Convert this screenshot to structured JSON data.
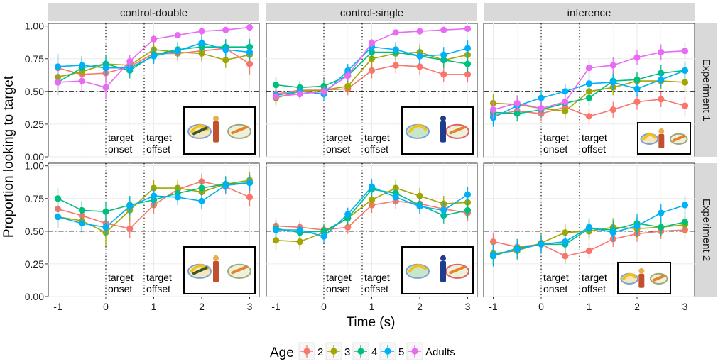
{
  "chart_data": {
    "type": "line",
    "xlabel": "Time (s)",
    "ylabel": "Proportion looking to target",
    "xlim": [
      -1.2,
      3.2
    ],
    "ylim": [
      0,
      1.02
    ],
    "x_ticks": [
      -1,
      0,
      1,
      2,
      3
    ],
    "x_tick_labels": [
      "-1",
      "0",
      "1",
      "2",
      "3"
    ],
    "y_ticks": [
      0,
      0.25,
      0.5,
      0.75,
      1.0
    ],
    "y_tick_labels": [
      "0.00",
      "0.25",
      "0.50",
      "0.75",
      "1.00"
    ],
    "chance_line": 0.5,
    "target_onset_x": 0,
    "target_offset_x": 0.8,
    "annotations": {
      "target_onset": [
        "target",
        "onset"
      ],
      "target_offset": [
        "target",
        "offset"
      ]
    },
    "grid": true,
    "legend": {
      "title": "Age",
      "position": "bottom",
      "entries": [
        {
          "label": "2",
          "color": "#F8766D"
        },
        {
          "label": "3",
          "color": "#A3A500"
        },
        {
          "label": "4",
          "color": "#00BF7D"
        },
        {
          "label": "5",
          "color": "#00B0F6"
        },
        {
          "label": "Adults",
          "color": "#E76BF3"
        }
      ]
    },
    "columns": [
      "control-double",
      "control-single",
      "inference"
    ],
    "rows": [
      "Experiment 1",
      "Experiment 2"
    ],
    "x": [
      -1,
      -0.5,
      0,
      0.5,
      1,
      1.5,
      2,
      2.5,
      3
    ],
    "panels": [
      {
        "column": "control-double",
        "row": "Experiment 1",
        "series": [
          {
            "age": "2",
            "values": [
              0.68,
              0.63,
              0.64,
              0.69,
              0.79,
              0.79,
              0.81,
              0.83,
              0.71
            ],
            "err": [
              0.1,
              0.08,
              0.07,
              0.07,
              0.06,
              0.06,
              0.06,
              0.06,
              0.08
            ]
          },
          {
            "age": "3",
            "values": [
              0.61,
              0.65,
              0.71,
              0.7,
              0.82,
              0.8,
              0.79,
              0.74,
              0.78
            ],
            "err": [
              0.1,
              0.07,
              0.07,
              0.06,
              0.06,
              0.06,
              0.06,
              0.06,
              0.06
            ]
          },
          {
            "age": "4",
            "values": [
              0.57,
              0.68,
              0.71,
              0.66,
              0.78,
              0.82,
              0.84,
              0.84,
              0.84
            ],
            "err": [
              0.1,
              0.07,
              0.07,
              0.06,
              0.06,
              0.06,
              0.06,
              0.06,
              0.06
            ]
          },
          {
            "age": "5",
            "values": [
              0.69,
              0.7,
              0.68,
              0.68,
              0.77,
              0.81,
              0.87,
              0.82,
              0.8
            ],
            "err": [
              0.1,
              0.07,
              0.07,
              0.06,
              0.06,
              0.06,
              0.06,
              0.06,
              0.06
            ]
          },
          {
            "age": "Adults",
            "values": [
              0.57,
              0.58,
              0.53,
              0.73,
              0.9,
              0.93,
              0.96,
              0.97,
              0.99
            ],
            "err": [
              0.1,
              0.08,
              0.09,
              0.05,
              0.03,
              0.02,
              0.02,
              0.02,
              0.01
            ]
          }
        ]
      },
      {
        "column": "control-single",
        "row": "Experiment 1",
        "series": [
          {
            "age": "2",
            "values": [
              0.48,
              0.51,
              0.51,
              0.52,
              0.66,
              0.7,
              0.69,
              0.63,
              0.63
            ],
            "err": [
              0.06,
              0.05,
              0.05,
              0.05,
              0.06,
              0.06,
              0.06,
              0.06,
              0.06
            ]
          },
          {
            "age": "3",
            "values": [
              0.45,
              0.5,
              0.51,
              0.54,
              0.75,
              0.79,
              0.8,
              0.74,
              0.78
            ],
            "err": [
              0.06,
              0.05,
              0.05,
              0.05,
              0.06,
              0.06,
              0.06,
              0.06,
              0.06
            ]
          },
          {
            "age": "4",
            "values": [
              0.55,
              0.53,
              0.54,
              0.62,
              0.8,
              0.8,
              0.77,
              0.74,
              0.71
            ],
            "err": [
              0.06,
              0.05,
              0.05,
              0.05,
              0.06,
              0.06,
              0.06,
              0.06,
              0.06
            ]
          },
          {
            "age": "5",
            "values": [
              0.47,
              0.5,
              0.48,
              0.66,
              0.84,
              0.82,
              0.77,
              0.78,
              0.83
            ],
            "err": [
              0.06,
              0.05,
              0.05,
              0.05,
              0.06,
              0.06,
              0.06,
              0.06,
              0.06
            ]
          },
          {
            "age": "Adults",
            "values": [
              0.46,
              0.48,
              0.5,
              0.62,
              0.87,
              0.95,
              0.96,
              0.97,
              0.98
            ],
            "err": [
              0.05,
              0.04,
              0.04,
              0.04,
              0.03,
              0.02,
              0.02,
              0.01,
              0.01
            ]
          }
        ]
      },
      {
        "column": "inference",
        "row": "Experiment 1",
        "series": [
          {
            "age": "2",
            "values": [
              0.32,
              0.35,
              0.33,
              0.38,
              0.31,
              0.36,
              0.42,
              0.44,
              0.39
            ],
            "err": [
              0.07,
              0.06,
              0.06,
              0.06,
              0.06,
              0.06,
              0.06,
              0.06,
              0.08
            ]
          },
          {
            "age": "3",
            "values": [
              0.41,
              0.4,
              0.37,
              0.35,
              0.5,
              0.53,
              0.58,
              0.58,
              0.57
            ],
            "err": [
              0.07,
              0.06,
              0.06,
              0.06,
              0.06,
              0.06,
              0.06,
              0.06,
              0.07
            ]
          },
          {
            "age": "4",
            "values": [
              0.34,
              0.33,
              0.36,
              0.41,
              0.45,
              0.58,
              0.59,
              0.64,
              0.66
            ],
            "err": [
              0.07,
              0.06,
              0.06,
              0.06,
              0.06,
              0.06,
              0.06,
              0.06,
              0.07
            ]
          },
          {
            "age": "5",
            "values": [
              0.3,
              0.39,
              0.45,
              0.5,
              0.56,
              0.57,
              0.52,
              0.59,
              0.66
            ],
            "err": [
              0.07,
              0.06,
              0.06,
              0.06,
              0.06,
              0.06,
              0.06,
              0.06,
              0.07
            ]
          },
          {
            "age": "Adults",
            "values": [
              0.36,
              0.41,
              0.37,
              0.42,
              0.68,
              0.7,
              0.76,
              0.8,
              0.81
            ],
            "err": [
              0.07,
              0.06,
              0.06,
              0.06,
              0.06,
              0.06,
              0.06,
              0.06,
              0.06
            ]
          }
        ]
      },
      {
        "column": "control-double",
        "row": "Experiment 2",
        "series": [
          {
            "age": "2",
            "values": [
              0.67,
              0.62,
              0.56,
              0.52,
              0.7,
              0.82,
              0.88,
              0.84,
              0.76
            ],
            "err": [
              0.07,
              0.07,
              0.07,
              0.07,
              0.07,
              0.06,
              0.06,
              0.06,
              0.07
            ]
          },
          {
            "age": "3",
            "values": [
              0.61,
              0.58,
              0.49,
              0.66,
              0.83,
              0.83,
              0.8,
              0.86,
              0.89
            ],
            "err": [
              0.09,
              0.08,
              0.1,
              0.08,
              0.06,
              0.06,
              0.06,
              0.06,
              0.06
            ]
          },
          {
            "age": "4",
            "values": [
              0.75,
              0.66,
              0.65,
              0.7,
              0.74,
              0.79,
              0.83,
              0.86,
              0.87
            ],
            "err": [
              0.08,
              0.07,
              0.07,
              0.07,
              0.06,
              0.06,
              0.06,
              0.06,
              0.06
            ]
          },
          {
            "age": "5",
            "values": [
              0.61,
              0.56,
              0.53,
              0.69,
              0.77,
              0.76,
              0.73,
              0.85,
              0.87
            ],
            "err": [
              0.08,
              0.07,
              0.07,
              0.07,
              0.06,
              0.06,
              0.06,
              0.06,
              0.06
            ]
          }
        ]
      },
      {
        "column": "control-single",
        "row": "Experiment 2",
        "series": [
          {
            "age": "2",
            "values": [
              0.54,
              0.53,
              0.51,
              0.53,
              0.7,
              0.73,
              0.71,
              0.67,
              0.64
            ],
            "err": [
              0.06,
              0.05,
              0.05,
              0.05,
              0.06,
              0.06,
              0.06,
              0.06,
              0.06
            ]
          },
          {
            "age": "3",
            "values": [
              0.43,
              0.42,
              0.49,
              0.6,
              0.74,
              0.83,
              0.77,
              0.71,
              0.72
            ],
            "err": [
              0.07,
              0.06,
              0.06,
              0.06,
              0.06,
              0.06,
              0.06,
              0.06,
              0.06
            ]
          },
          {
            "age": "4",
            "values": [
              0.52,
              0.49,
              0.5,
              0.6,
              0.82,
              0.79,
              0.7,
              0.62,
              0.66
            ],
            "err": [
              0.06,
              0.05,
              0.05,
              0.05,
              0.06,
              0.06,
              0.06,
              0.06,
              0.06
            ]
          },
          {
            "age": "5",
            "values": [
              0.51,
              0.51,
              0.46,
              0.63,
              0.84,
              0.76,
              0.69,
              0.66,
              0.78
            ],
            "err": [
              0.06,
              0.05,
              0.05,
              0.05,
              0.06,
              0.06,
              0.06,
              0.06,
              0.06
            ]
          }
        ]
      },
      {
        "column": "inference",
        "row": "Experiment 2",
        "series": [
          {
            "age": "2",
            "values": [
              0.42,
              0.38,
              0.4,
              0.31,
              0.35,
              0.44,
              0.48,
              0.5,
              0.51
            ],
            "err": [
              0.07,
              0.06,
              0.06,
              0.06,
              0.06,
              0.06,
              0.06,
              0.06,
              0.06
            ]
          },
          {
            "age": "3",
            "values": [
              0.33,
              0.35,
              0.41,
              0.49,
              0.5,
              0.53,
              0.52,
              0.53,
              0.55
            ],
            "err": [
              0.08,
              0.07,
              0.07,
              0.07,
              0.07,
              0.07,
              0.07,
              0.07,
              0.07
            ]
          },
          {
            "age": "4",
            "values": [
              0.31,
              0.37,
              0.4,
              0.4,
              0.52,
              0.51,
              0.56,
              0.53,
              0.57
            ],
            "err": [
              0.08,
              0.07,
              0.07,
              0.07,
              0.07,
              0.07,
              0.07,
              0.07,
              0.07
            ]
          },
          {
            "age": "5",
            "values": [
              0.32,
              0.36,
              0.4,
              0.42,
              0.53,
              0.49,
              0.54,
              0.64,
              0.7
            ],
            "err": [
              0.08,
              0.07,
              0.07,
              0.07,
              0.07,
              0.07,
              0.07,
              0.07,
              0.07
            ]
          }
        ]
      }
    ]
  }
}
